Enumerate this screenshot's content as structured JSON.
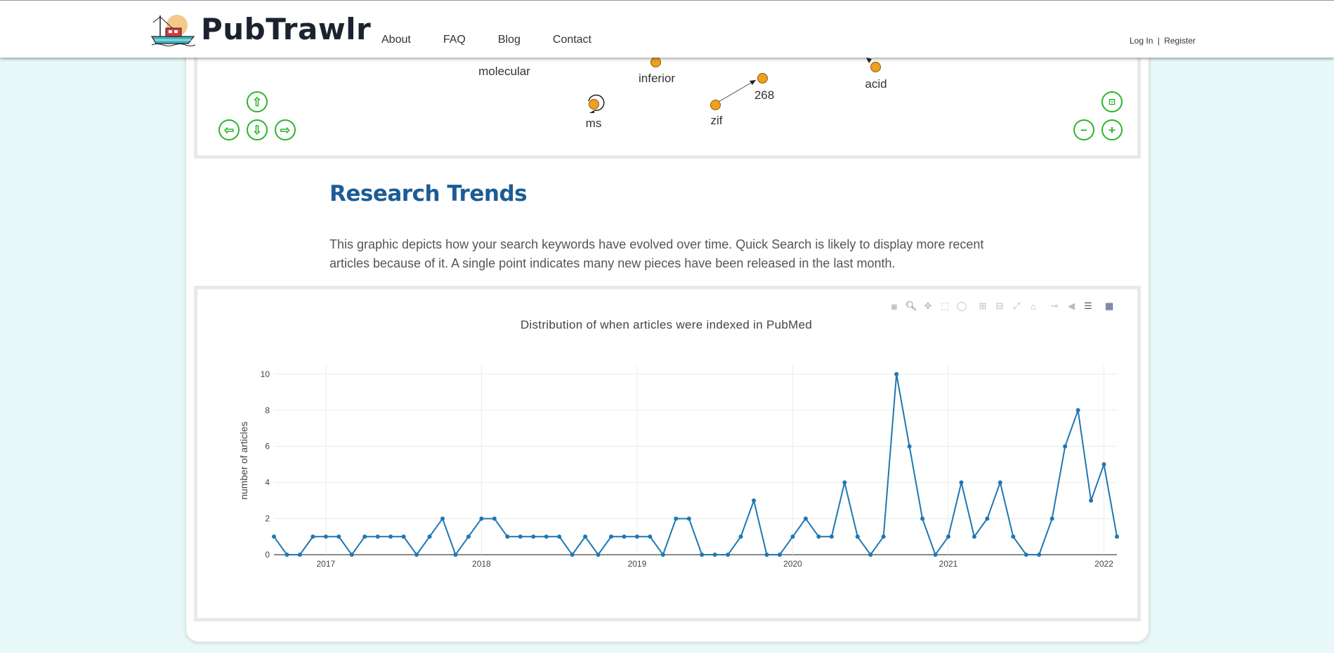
{
  "header": {
    "logo_text": "PubTrawlr",
    "nav": [
      "About",
      "FAQ",
      "Blog",
      "Contact"
    ],
    "login": "Log In",
    "separator": "|",
    "register": "Register"
  },
  "network": {
    "nodes": [
      {
        "label": "molecular"
      },
      {
        "label": "inferior"
      },
      {
        "label": "268"
      },
      {
        "label": "acid"
      },
      {
        "label": "ms"
      },
      {
        "label": "zif"
      }
    ],
    "controls": [
      "arrow-up",
      "arrow-left",
      "arrow-down",
      "arrow-right",
      "fit",
      "zoom-out",
      "zoom-in"
    ]
  },
  "trends": {
    "title": "Research Trends",
    "description": "This graphic depicts how your search keywords have evolved over time. Quick Search is likely to display more recent articles because of it. A single point indicates many new pieces have been released in the last month."
  },
  "modebar_icons": [
    "camera-icon",
    "zoom-icon",
    "pan-icon",
    "box-select-icon",
    "lasso-icon",
    "zoom-in-icon",
    "zoom-out-icon",
    "autoscale-icon",
    "reset-axes-icon",
    "spike-lines-icon",
    "hover-closest-icon",
    "hover-compare-icon",
    "plotly-logo-icon"
  ],
  "chart_data": {
    "type": "line",
    "title": "Distribution of when articles were indexed in PubMed",
    "xlabel": "",
    "ylabel": "number of articles",
    "x_ticks": [
      "2017",
      "2018",
      "2019",
      "2020",
      "2021",
      "2022"
    ],
    "y_ticks": [
      0,
      2,
      4,
      6,
      8,
      10
    ],
    "ylim": [
      0,
      10.5
    ],
    "xlim": [
      "2016-09",
      "2022-02"
    ],
    "color": "#1f77b4",
    "series": [
      {
        "x": [
          "2016-09",
          "2016-10",
          "2016-11",
          "2016-12",
          "2017-01",
          "2017-02",
          "2017-03",
          "2017-04",
          "2017-05",
          "2017-06",
          "2017-07",
          "2017-08",
          "2017-09",
          "2017-10",
          "2017-11",
          "2017-12",
          "2018-01",
          "2018-02",
          "2018-03",
          "2018-04",
          "2018-05",
          "2018-06",
          "2018-07",
          "2018-08",
          "2018-09",
          "2018-10",
          "2018-11",
          "2018-12",
          "2019-01",
          "2019-02",
          "2019-03",
          "2019-04",
          "2019-05",
          "2019-06",
          "2019-07",
          "2019-08",
          "2019-09",
          "2019-10",
          "2019-11",
          "2019-12",
          "2020-01",
          "2020-02",
          "2020-03",
          "2020-04",
          "2020-05",
          "2020-06",
          "2020-07",
          "2020-08",
          "2020-09",
          "2020-10",
          "2020-11",
          "2020-12",
          "2021-01",
          "2021-02",
          "2021-03",
          "2021-04",
          "2021-05",
          "2021-06",
          "2021-07",
          "2021-08",
          "2021-09",
          "2021-10",
          "2021-11",
          "2021-12",
          "2022-01",
          "2022-02"
        ],
        "values": [
          1,
          0,
          0,
          1,
          1,
          1,
          0,
          1,
          1,
          1,
          1,
          0,
          1,
          2,
          0,
          1,
          2,
          2,
          1,
          1,
          1,
          1,
          1,
          0,
          1,
          0,
          1,
          1,
          1,
          1,
          0,
          2,
          2,
          0,
          0,
          0,
          1,
          3,
          0,
          0,
          1,
          2,
          1,
          1,
          4,
          1,
          0,
          1,
          10,
          6,
          2,
          0,
          1,
          4,
          1,
          2,
          4,
          1,
          0,
          0,
          2,
          6,
          8,
          3,
          5,
          1
        ]
      }
    ]
  }
}
